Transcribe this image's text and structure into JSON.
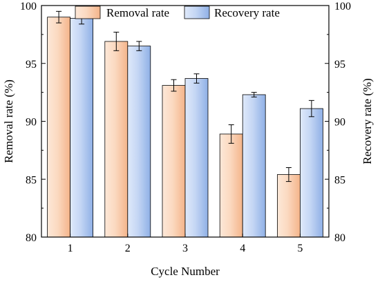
{
  "chart_data": {
    "type": "bar",
    "title": "",
    "xlabel": "Cycle Number",
    "ylabel": "Removal rate (%)",
    "y2label": "Recovery rate (%)",
    "categories": [
      "1",
      "2",
      "3",
      "4",
      "5"
    ],
    "ylim": [
      80,
      100
    ],
    "y2lim": [
      80,
      100
    ],
    "yticks": [
      80,
      85,
      90,
      95,
      100
    ],
    "legend_position": "top-center",
    "grid": false,
    "series": [
      {
        "name": "Removal rate",
        "values": [
          99.0,
          96.9,
          93.1,
          88.9,
          85.4
        ],
        "errors": [
          0.5,
          0.8,
          0.5,
          0.8,
          0.6
        ],
        "color": "#f8c6a0",
        "axis": "left"
      },
      {
        "name": "Recovery rate",
        "values": [
          98.9,
          96.5,
          93.7,
          92.3,
          91.1
        ],
        "errors": [
          0.5,
          0.4,
          0.4,
          0.2,
          0.7
        ],
        "color": "#a9c4ef",
        "axis": "right"
      }
    ]
  }
}
